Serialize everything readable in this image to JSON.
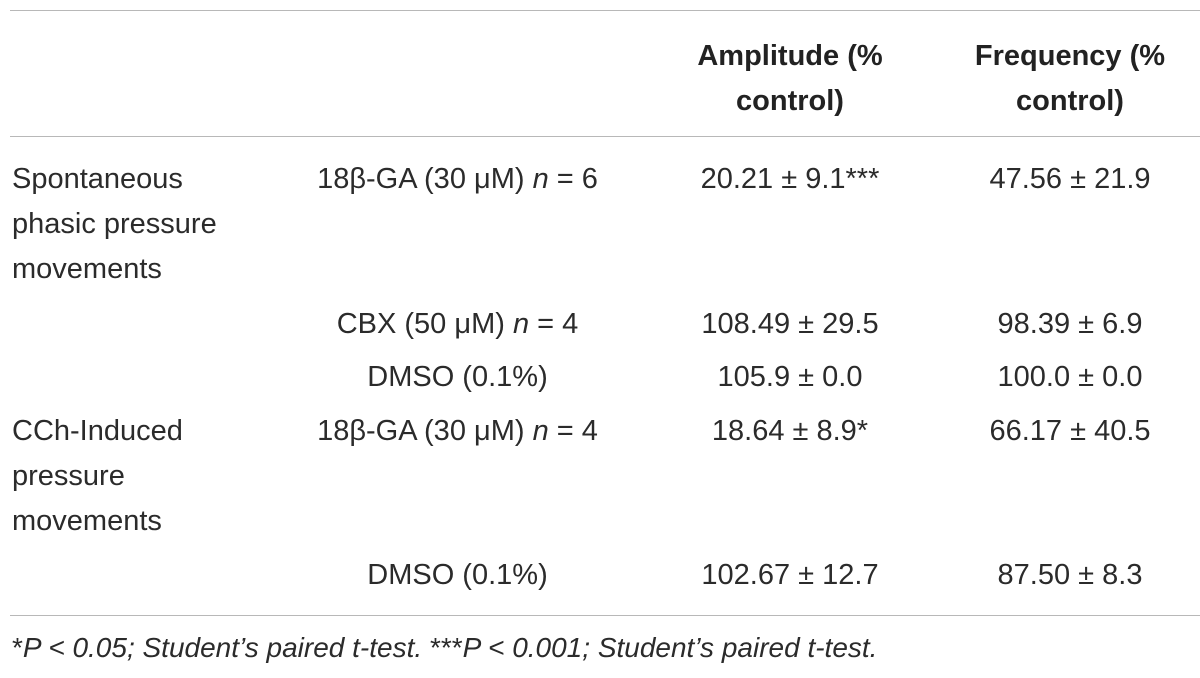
{
  "header": {
    "amplitude_line1": "Amplitude (%",
    "amplitude_line2": "control)",
    "frequency_line1": "Frequency (%",
    "frequency_line2": "control)"
  },
  "groups": [
    {
      "label_lines": [
        "Spontaneous",
        "phasic pressure",
        "movements"
      ]
    },
    {
      "label_lines": [
        "CCh-Induced",
        "pressure",
        "movements"
      ]
    }
  ],
  "rows": [
    {
      "treatment": "18β-GA (30 μM) ",
      "n_label": "n",
      "n_value": " = 6",
      "amplitude": "20.21 ± 9.1***",
      "frequency": "47.56 ± 21.9"
    },
    {
      "treatment": "CBX (50 μM) ",
      "n_label": "n",
      "n_value": " = 4",
      "amplitude": "108.49 ± 29.5",
      "frequency": "98.39 ± 6.9"
    },
    {
      "treatment": "DMSO (0.1%)",
      "amplitude": "105.9 ± 0.0",
      "frequency": "100.0 ± 0.0"
    },
    {
      "treatment": "18β-GA (30 μM) ",
      "n_label": "n",
      "n_value": " = 4",
      "amplitude": "18.64 ± 8.9*",
      "frequency": "66.17 ± 40.5"
    },
    {
      "treatment": "DMSO (0.1%)",
      "amplitude": "102.67 ± 12.7",
      "frequency": "87.50 ± 8.3"
    }
  ],
  "footnote": {
    "star1": "*",
    "part1": "P < 0.05; Student’s paired t-test. ",
    "star3": "***",
    "part2": "P < 0.001; Student’s paired t-test."
  }
}
